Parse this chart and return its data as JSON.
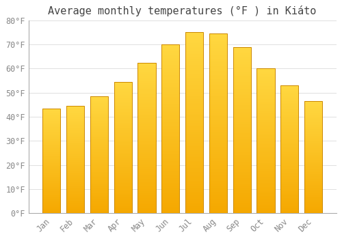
{
  "title": "Average monthly temperatures (°F ) in Kiáto",
  "months": [
    "Jan",
    "Feb",
    "Mar",
    "Apr",
    "May",
    "Jun",
    "Jul",
    "Aug",
    "Sep",
    "Oct",
    "Nov",
    "Dec"
  ],
  "values": [
    43.5,
    44.5,
    48.5,
    54.5,
    62.5,
    70.0,
    75.0,
    74.5,
    69.0,
    60.0,
    53.0,
    46.5
  ],
  "bar_color_bottom": "#F5A800",
  "bar_color_top": "#FFD740",
  "bar_edge_color": "#CC8800",
  "ylim": [
    0,
    80
  ],
  "yticks": [
    0,
    10,
    20,
    30,
    40,
    50,
    60,
    70,
    80
  ],
  "ytick_labels": [
    "0°F",
    "10°F",
    "20°F",
    "30°F",
    "40°F",
    "50°F",
    "60°F",
    "70°F",
    "80°F"
  ],
  "background_color": "#FFFFFF",
  "grid_color": "#E0E0E0",
  "title_fontsize": 11,
  "tick_fontsize": 8.5,
  "tick_color": "#888888",
  "figsize": [
    5.0,
    3.5
  ],
  "dpi": 100
}
